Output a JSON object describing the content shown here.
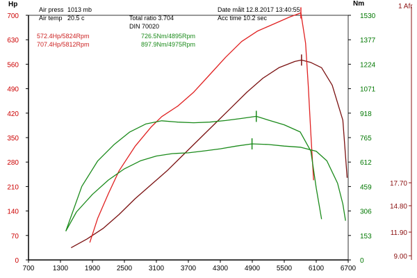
{
  "header": {
    "air_press_label": "Air press",
    "air_press_value": "1013 mb",
    "air_temp_label": "Air temp",
    "air_temp_value": "20.5 c",
    "total_ratio": "Total ratio 3.704",
    "din": "DIN 70020",
    "date_label": "Date målt 12.8.2017 13:40:55",
    "acc_time": "Acc time  10.2 sec"
  },
  "results": {
    "run1_power": "572.4Hp/5824Rpm",
    "run2_power": "707.4Hp/5812Rpm",
    "run1_torque": "726.5Nm/4895Rpm",
    "run2_torque": "897.9Nm/4975Rpm"
  },
  "colors": {
    "run1_power": "#7a1010",
    "run2_power": "#e02020",
    "torque": "#1a8a1a",
    "axis_red": "#cc0000",
    "axis_green": "#007700",
    "afr": "#8b1010"
  },
  "chart_data": {
    "type": "line",
    "xlabel": "",
    "x_ticks": [
      700,
      1300,
      1900,
      2500,
      3100,
      3700,
      4300,
      4900,
      5500,
      6100,
      6700
    ],
    "xlim": [
      700,
      6700
    ],
    "left_axis": {
      "label": "Hp",
      "ticks": [
        0,
        70,
        140,
        210,
        280,
        350,
        420,
        490,
        560,
        630,
        700
      ],
      "ylim": [
        0,
        700
      ]
    },
    "right_axis": {
      "label": "Nm",
      "ticks": [
        0,
        153,
        306,
        459,
        612,
        765,
        918,
        1071,
        1224,
        1377,
        1530
      ],
      "ylim": [
        0,
        1530
      ]
    },
    "afr_axis": {
      "label": "1 Afr",
      "ticks": [
        "17.70",
        "14.80",
        "11.90",
        "9.00"
      ]
    },
    "series": [
      {
        "axis": "left",
        "x": [
          1500,
          1800,
          2100,
          2400,
          2700,
          3000,
          3300,
          3600,
          3900,
          4200,
          4500,
          4800,
          5100,
          5400,
          5700,
          5824,
          6000,
          6200,
          6400,
          6600,
          6680
        ],
        "values": [
          35,
          60,
          90,
          130,
          175,
          215,
          255,
          300,
          345,
          390,
          435,
          480,
          520,
          550,
          568,
          572,
          565,
          550,
          500,
          400,
          235
        ]
      },
      {
        "axis": "left",
        "x": [
          1850,
          2000,
          2200,
          2400,
          2700,
          3000,
          3200,
          3500,
          3800,
          4100,
          4400,
          4700,
          5000,
          5300,
          5600,
          5812,
          5900,
          5950,
          6000,
          6050
        ],
        "values": [
          50,
          120,
          190,
          255,
          325,
          380,
          410,
          440,
          480,
          530,
          580,
          625,
          655,
          675,
          695,
          707,
          620,
          500,
          360,
          228
        ]
      },
      {
        "axis": "right",
        "x": [
          1400,
          1700,
          2000,
          2300,
          2600,
          2900,
          3200,
          3500,
          3800,
          4100,
          4400,
          4700,
          4975,
          5200,
          5500,
          5800,
          6000,
          6100,
          6200
        ],
        "values": [
          180,
          460,
          620,
          720,
          800,
          850,
          870,
          862,
          858,
          862,
          872,
          885,
          898,
          875,
          845,
          800,
          680,
          450,
          255
        ]
      },
      {
        "axis": "right",
        "x": [
          1400,
          1600,
          1900,
          2200,
          2500,
          2800,
          3100,
          3400,
          3700,
          4000,
          4300,
          4600,
          4895,
          5200,
          5500,
          5800,
          6100,
          6300,
          6500,
          6600,
          6650
        ],
        "values": [
          180,
          300,
          410,
          500,
          570,
          620,
          650,
          665,
          670,
          682,
          695,
          712,
          726,
          722,
          712,
          705,
          680,
          620,
          480,
          350,
          245
        ]
      }
    ],
    "markers": [
      {
        "axis": "left",
        "x": 5824,
        "value": 572
      },
      {
        "axis": "left",
        "x": 5812,
        "value": 707
      },
      {
        "axis": "right",
        "x": 4975,
        "value": 898
      },
      {
        "axis": "right",
        "x": 4895,
        "value": 726
      }
    ]
  }
}
